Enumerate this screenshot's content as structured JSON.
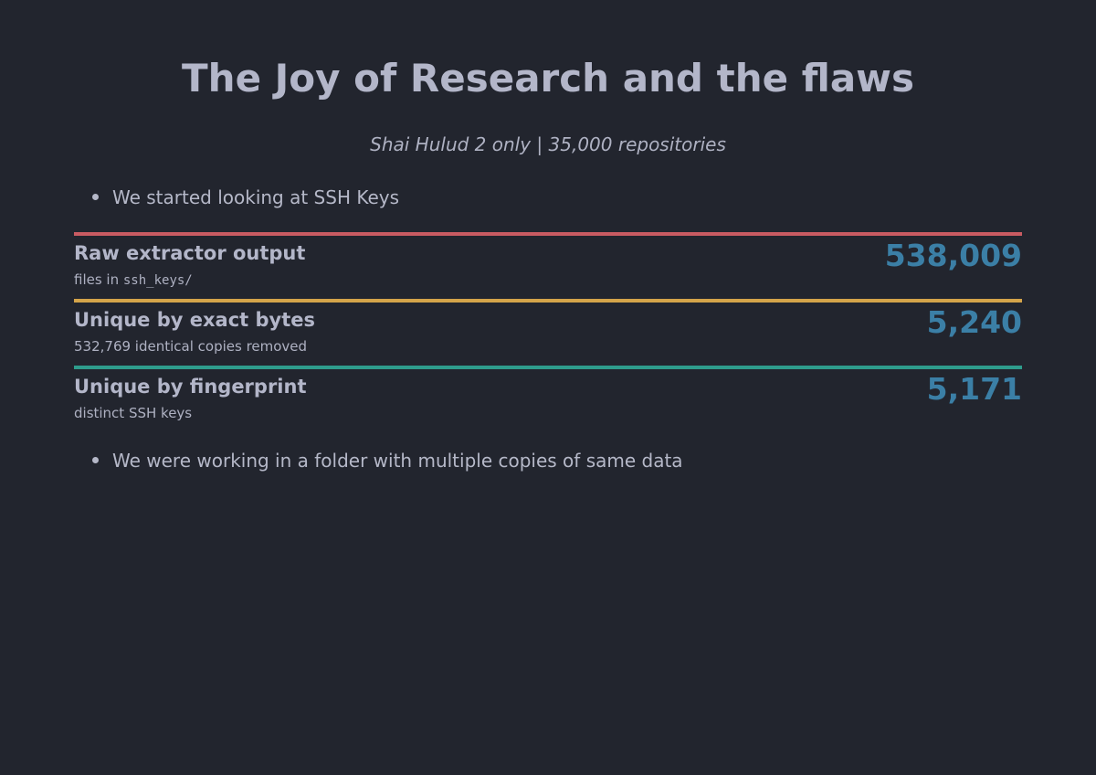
{
  "slide": {
    "title": "The Joy of Research and the flaws",
    "subtitle": "Shai Hulud 2 only | 35,000 repositories",
    "bullets": [
      "We started looking at SSH Keys",
      "We were working in a folder with multiple copies of same data"
    ],
    "stats": [
      {
        "label": "Raw extractor output",
        "sub_prefix": "files in ",
        "sub_code": "ssh_keys/",
        "value": "538,009",
        "bar_color": "#c95b62",
        "value_color": "#3b7fa6"
      },
      {
        "label": "Unique by exact bytes",
        "sub": "532,769 identical copies removed",
        "value": "5,240",
        "bar_color": "#d4a44a",
        "value_color": "#3b7fa6"
      },
      {
        "label": "Unique by fingerprint",
        "sub": "distinct SSH keys",
        "value": "5,171",
        "bar_color": "#2e9c8c",
        "value_color": "#3b7fa6"
      }
    ]
  }
}
